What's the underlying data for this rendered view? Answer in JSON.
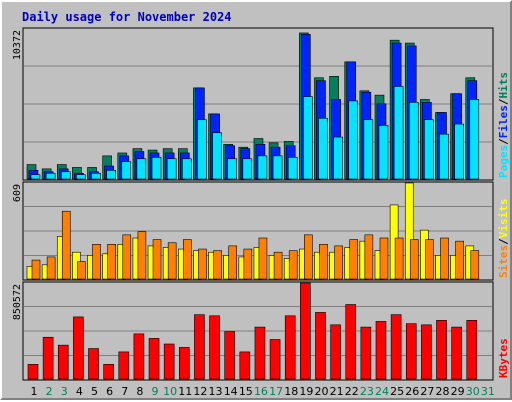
{
  "title": "Daily usage for November 2024",
  "colors": {
    "hits": "#00805c",
    "files": "#0024ff",
    "pages": "#00e4ff",
    "visits": "#ffff00",
    "sites": "#ff8000",
    "kbytes": "#ff0000",
    "weekday": "#000000",
    "weekend": "#00805c",
    "slash": "#000000"
  },
  "chart_data": [
    {
      "type": "bar",
      "name": "hits-files-pages",
      "ymax_label": "10372",
      "ylim": [
        0,
        10372
      ],
      "legend": [
        "Pages",
        "Files",
        "Hits"
      ],
      "categories": [
        "1",
        "2",
        "3",
        "4",
        "5",
        "6",
        "7",
        "8",
        "9",
        "10",
        "11",
        "12",
        "13",
        "14",
        "15",
        "16",
        "17",
        "18",
        "19",
        "20",
        "21",
        "22",
        "23",
        "24",
        "25",
        "26",
        "27",
        "28",
        "29",
        "30",
        "31"
      ],
      "series": [
        {
          "name": "Hits",
          "values": [
            1000,
            700,
            1000,
            800,
            800,
            1600,
            1800,
            2100,
            2000,
            2100,
            2100,
            6300,
            4500,
            2400,
            2200,
            2800,
            2500,
            2600,
            10100,
            7000,
            7100,
            8100,
            6100,
            5800,
            9600,
            9400,
            5500,
            4600,
            5900,
            7000,
            0
          ]
        },
        {
          "name": "Files",
          "values": [
            600,
            500,
            700,
            400,
            500,
            900,
            1600,
            1900,
            1800,
            1800,
            1800,
            6300,
            4500,
            2300,
            2100,
            2400,
            2200,
            2300,
            10000,
            6800,
            5500,
            8100,
            6000,
            5200,
            9400,
            9200,
            5300,
            4600,
            5900,
            6800,
            0
          ]
        },
        {
          "name": "Pages",
          "values": [
            300,
            400,
            500,
            300,
            400,
            600,
            1200,
            1400,
            1500,
            1400,
            1400,
            4100,
            3200,
            1400,
            1400,
            1600,
            1600,
            1500,
            5700,
            4200,
            2900,
            5400,
            4100,
            3700,
            6400,
            5300,
            4100,
            3100,
            3800,
            5500,
            0
          ]
        }
      ]
    },
    {
      "type": "bar",
      "name": "visits-sites",
      "ymax_label": "609",
      "ylim": [
        0,
        609
      ],
      "legend": [
        "Sites",
        "Visits"
      ],
      "categories": [
        "1",
        "2",
        "3",
        "4",
        "5",
        "6",
        "7",
        "8",
        "9",
        "10",
        "11",
        "12",
        "13",
        "14",
        "15",
        "16",
        "17",
        "18",
        "19",
        "20",
        "21",
        "22",
        "23",
        "24",
        "25",
        "26",
        "27",
        "28",
        "29",
        "30",
        "31"
      ],
      "series": [
        {
          "name": "Visits",
          "values": [
            80,
            90,
            270,
            170,
            150,
            160,
            220,
            260,
            210,
            200,
            190,
            180,
            170,
            150,
            140,
            200,
            150,
            130,
            190,
            170,
            170,
            200,
            240,
            180,
            470,
            609,
            310,
            150,
            150,
            210,
            0
          ]
        },
        {
          "name": "Sites",
          "values": [
            120,
            140,
            430,
            110,
            220,
            220,
            280,
            300,
            250,
            230,
            250,
            190,
            180,
            210,
            190,
            260,
            170,
            180,
            280,
            220,
            210,
            250,
            280,
            260,
            260,
            250,
            250,
            260,
            240,
            180,
            0
          ]
        }
      ]
    },
    {
      "type": "bar",
      "name": "kbytes",
      "ymax_label": "850572",
      "ylim": [
        0,
        850572
      ],
      "legend": [
        "KBytes"
      ],
      "categories": [
        "1",
        "2",
        "3",
        "4",
        "5",
        "6",
        "7",
        "8",
        "9",
        "10",
        "11",
        "12",
        "13",
        "14",
        "15",
        "16",
        "17",
        "18",
        "19",
        "20",
        "21",
        "22",
        "23",
        "24",
        "25",
        "26",
        "27",
        "28",
        "29",
        "30",
        "31"
      ],
      "series": [
        {
          "name": "KBytes",
          "values": [
            130000,
            370000,
            300000,
            550000,
            270000,
            130000,
            240000,
            400000,
            360000,
            310000,
            280000,
            570000,
            560000,
            420000,
            240000,
            460000,
            350000,
            560000,
            850572,
            590000,
            480000,
            660000,
            460000,
            510000,
            570000,
            490000,
            480000,
            520000,
            460000,
            520000,
            0
          ]
        }
      ]
    }
  ]
}
